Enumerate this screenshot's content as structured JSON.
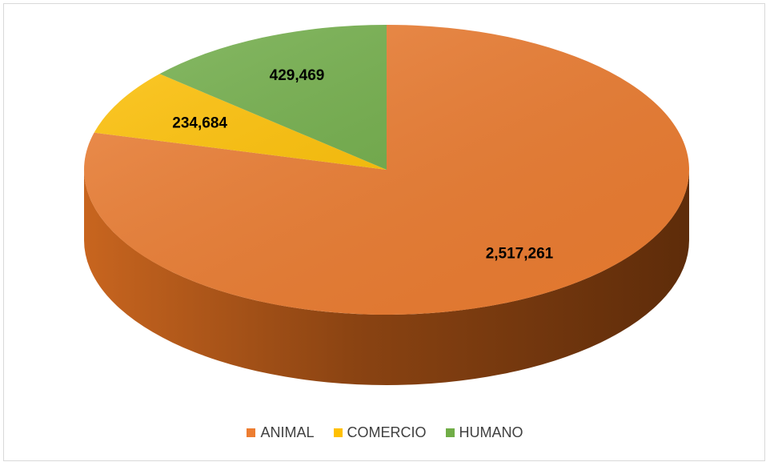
{
  "chart_data": {
    "type": "pie",
    "title": "",
    "style": "3d",
    "categories": [
      "ANIMAL",
      "COMERCIO",
      "HUMANO"
    ],
    "values": [
      2517261,
      234684,
      429469
    ],
    "data_labels": [
      "2,517,261",
      "234,684",
      "429,469"
    ],
    "colors": [
      "#ed7d31",
      "#ffc000",
      "#70ad47"
    ],
    "legend_position": "bottom",
    "start_angle_deg": 90,
    "direction": "clockwise"
  },
  "legend": {
    "items": [
      {
        "label": "ANIMAL",
        "color": "#ed7d31"
      },
      {
        "label": "COMERCIO",
        "color": "#ffc000"
      },
      {
        "label": "HUMANO",
        "color": "#70ad47"
      }
    ]
  }
}
